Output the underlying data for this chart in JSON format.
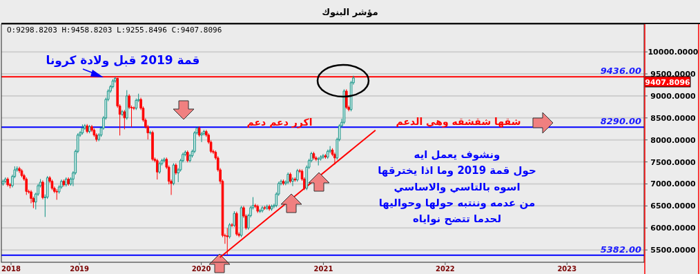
{
  "chart_data": {
    "type": "candlestick",
    "title": "مؤشر البنوك",
    "x": [
      "2018-05-17",
      "2018-05-24",
      "2018-05-31",
      "2018-06-07",
      "2018-06-14",
      "2018-06-21",
      "2018-06-28",
      "2018-07-05",
      "2018-07-12",
      "2018-07-19",
      "2018-07-26",
      "2018-08-02",
      "2018-08-09",
      "2018-08-16",
      "2018-08-23",
      "2018-08-30",
      "2018-09-06",
      "2018-09-13",
      "2018-09-20",
      "2018-09-27",
      "2018-10-04",
      "2018-10-11",
      "2018-10-18",
      "2018-10-25",
      "2018-11-01",
      "2018-11-08",
      "2018-11-15",
      "2018-11-22",
      "2018-11-29",
      "2018-12-06",
      "2018-12-13",
      "2018-12-20",
      "2018-12-27",
      "2019-01-03",
      "2019-01-10",
      "2019-01-17",
      "2019-01-24",
      "2019-01-31",
      "2019-02-07",
      "2019-02-14",
      "2019-02-21",
      "2019-02-28",
      "2019-03-07",
      "2019-03-14",
      "2019-03-21",
      "2019-03-28",
      "2019-04-04",
      "2019-04-11",
      "2019-04-18",
      "2019-04-25",
      "2019-05-02",
      "2019-05-09",
      "2019-05-16",
      "2019-05-23",
      "2019-05-30",
      "2019-06-06",
      "2019-06-13",
      "2019-06-20",
      "2019-06-27",
      "2019-07-04",
      "2019-07-11",
      "2019-07-18",
      "2019-07-25",
      "2019-08-01",
      "2019-08-08",
      "2019-08-15",
      "2019-08-22",
      "2019-08-29",
      "2019-09-05",
      "2019-09-12",
      "2019-09-19",
      "2019-09-26",
      "2019-10-03",
      "2019-10-10",
      "2019-10-17",
      "2019-10-24",
      "2019-10-31",
      "2019-11-07",
      "2019-11-14",
      "2019-11-21",
      "2019-11-28",
      "2019-12-05",
      "2019-12-12",
      "2019-12-19",
      "2019-12-26",
      "2020-01-02",
      "2020-01-09",
      "2020-01-16",
      "2020-01-23",
      "2020-01-30",
      "2020-02-06",
      "2020-02-13",
      "2020-02-20",
      "2020-02-27",
      "2020-03-05",
      "2020-03-12",
      "2020-03-19",
      "2020-03-26",
      "2020-04-02",
      "2020-04-09",
      "2020-04-16",
      "2020-04-23",
      "2020-04-30",
      "2020-05-07",
      "2020-05-14",
      "2020-05-21",
      "2020-05-28",
      "2020-06-04",
      "2020-06-11",
      "2020-06-18",
      "2020-06-25",
      "2020-07-02",
      "2020-07-09",
      "2020-07-16",
      "2020-07-23",
      "2020-07-30",
      "2020-08-06",
      "2020-08-13",
      "2020-08-20",
      "2020-08-27",
      "2020-09-03",
      "2020-09-10",
      "2020-09-17",
      "2020-09-24",
      "2020-10-01",
      "2020-10-08",
      "2020-10-15",
      "2020-10-22",
      "2020-10-29",
      "2020-11-05",
      "2020-11-12",
      "2020-11-19",
      "2020-11-26",
      "2020-12-03",
      "2020-12-10",
      "2020-12-17",
      "2020-12-24",
      "2020-12-31",
      "2021-01-07",
      "2021-01-14",
      "2021-01-21",
      "2021-01-28",
      "2021-02-04",
      "2021-02-11",
      "2021-02-18",
      "2021-02-25",
      "2021-03-04",
      "2021-03-11",
      "2021-03-18",
      "2021-03-25",
      "2021-04-01"
    ],
    "ohlc": [
      [
        7000,
        7100,
        6960,
        7060
      ],
      [
        7060,
        7150,
        7020,
        7110
      ],
      [
        7110,
        7150,
        6940,
        6980
      ],
      [
        6980,
        7020,
        6900,
        6960
      ],
      [
        6960,
        7210,
        6920,
        7170
      ],
      [
        7170,
        7400,
        7130,
        7320
      ],
      [
        7320,
        7400,
        7280,
        7350
      ],
      [
        7350,
        7390,
        7250,
        7300
      ],
      [
        7300,
        7340,
        7150,
        7190
      ],
      [
        7190,
        7230,
        7070,
        7110
      ],
      [
        7110,
        7150,
        6750,
        6830
      ],
      [
        6830,
        6870,
        6780,
        6820
      ],
      [
        6820,
        6860,
        6560,
        6670
      ],
      [
        6670,
        6710,
        6450,
        6590
      ],
      [
        6590,
        6800,
        6420,
        6770
      ],
      [
        6770,
        7000,
        6730,
        6960
      ],
      [
        6960,
        7110,
        6920,
        7040
      ],
      [
        7040,
        7080,
        6650,
        6690
      ],
      [
        6690,
        6760,
        6250,
        6700
      ],
      [
        6700,
        7180,
        6660,
        7140
      ],
      [
        7140,
        7180,
        7020,
        7060
      ],
      [
        7060,
        7100,
        6860,
        6900
      ],
      [
        6900,
        6940,
        6790,
        6830
      ],
      [
        6830,
        6880,
        6640,
        6820
      ],
      [
        6820,
        6970,
        6780,
        6930
      ],
      [
        6930,
        7100,
        6890,
        7060
      ],
      [
        7060,
        7100,
        6940,
        6980
      ],
      [
        6980,
        7150,
        6940,
        7110
      ],
      [
        7110,
        7150,
        6960,
        7000
      ],
      [
        7000,
        7150,
        6960,
        7110
      ],
      [
        7110,
        7290,
        6950,
        7250
      ],
      [
        7250,
        7780,
        7210,
        7740
      ],
      [
        7740,
        8150,
        7700,
        8110
      ],
      [
        8110,
        8200,
        8070,
        8160
      ],
      [
        8160,
        8350,
        8120,
        8270
      ],
      [
        8270,
        8360,
        8230,
        8320
      ],
      [
        8320,
        8360,
        8150,
        8190
      ],
      [
        8190,
        8340,
        8150,
        8300
      ],
      [
        8300,
        8340,
        8180,
        8220
      ],
      [
        8220,
        8260,
        8070,
        8110
      ],
      [
        8110,
        8150,
        7960,
        8010
      ],
      [
        8010,
        8150,
        7970,
        8110
      ],
      [
        8110,
        8310,
        8070,
        8270
      ],
      [
        8270,
        8540,
        8230,
        8500
      ],
      [
        8500,
        8960,
        8460,
        8920
      ],
      [
        8920,
        9150,
        8880,
        9110
      ],
      [
        9110,
        9250,
        9070,
        9210
      ],
      [
        9210,
        9380,
        9170,
        9340
      ],
      [
        9340,
        9430,
        9300,
        9400
      ],
      [
        9400,
        9410,
        8730,
        8770
      ],
      [
        8770,
        8810,
        8100,
        8580
      ],
      [
        8580,
        8680,
        8540,
        8640
      ],
      [
        8640,
        8680,
        8240,
        8500
      ],
      [
        8500,
        9130,
        8460,
        9000
      ],
      [
        9000,
        9040,
        8700,
        8740
      ],
      [
        8740,
        8780,
        8290,
        8730
      ],
      [
        8730,
        8760,
        8680,
        8720
      ],
      [
        8720,
        8940,
        8680,
        8900
      ],
      [
        8900,
        9050,
        8860,
        8920
      ],
      [
        8920,
        8960,
        8680,
        8720
      ],
      [
        8720,
        8760,
        8410,
        8450
      ],
      [
        8450,
        8490,
        8260,
        8300
      ],
      [
        8300,
        8340,
        8010,
        8160
      ],
      [
        8160,
        8210,
        8120,
        8170
      ],
      [
        8170,
        8210,
        7520,
        7560
      ],
      [
        7560,
        7600,
        7490,
        7530
      ],
      [
        7530,
        7570,
        7100,
        7270
      ],
      [
        7270,
        7500,
        7230,
        7460
      ],
      [
        7460,
        7570,
        7420,
        7530
      ],
      [
        7530,
        7600,
        7490,
        7560
      ],
      [
        7560,
        7600,
        7340,
        7380
      ],
      [
        7380,
        7420,
        6990,
        7060
      ],
      [
        7060,
        7100,
        6750,
        7010
      ],
      [
        7010,
        7470,
        6970,
        7430
      ],
      [
        7430,
        7470,
        7210,
        7250
      ],
      [
        7250,
        7360,
        7040,
        7320
      ],
      [
        7320,
        7570,
        7280,
        7530
      ],
      [
        7530,
        7710,
        7490,
        7670
      ],
      [
        7670,
        7760,
        7630,
        7720
      ],
      [
        7720,
        7760,
        7490,
        7530
      ],
      [
        7530,
        7680,
        7490,
        7640
      ],
      [
        7640,
        7780,
        7600,
        7740
      ],
      [
        7740,
        8200,
        7700,
        8160
      ],
      [
        8160,
        8300,
        8120,
        8270
      ],
      [
        8270,
        8310,
        8070,
        8110
      ],
      [
        8110,
        8180,
        7950,
        8140
      ],
      [
        8140,
        8230,
        8100,
        8190
      ],
      [
        8190,
        8230,
        8070,
        8110
      ],
      [
        8110,
        8150,
        7910,
        7950
      ],
      [
        7950,
        7990,
        7700,
        7740
      ],
      [
        7740,
        7780,
        7680,
        7720
      ],
      [
        7720,
        7760,
        7550,
        7590
      ],
      [
        7590,
        7630,
        7280,
        7320
      ],
      [
        7320,
        7360,
        7000,
        7060
      ],
      [
        7060,
        7100,
        5790,
        5830
      ],
      [
        5830,
        5870,
        5640,
        5820
      ],
      [
        5820,
        6000,
        5390,
        5800
      ],
      [
        5800,
        6110,
        5760,
        6070
      ],
      [
        6070,
        6110,
        6020,
        6060
      ],
      [
        6060,
        6380,
        6020,
        6330
      ],
      [
        6330,
        6370,
        5820,
        5860
      ],
      [
        5860,
        5900,
        5790,
        5830
      ],
      [
        5830,
        6500,
        5790,
        6460
      ],
      [
        6460,
        6500,
        6230,
        6270
      ],
      [
        6270,
        6310,
        5960,
        6000
      ],
      [
        6000,
        6320,
        5960,
        6280
      ],
      [
        6280,
        6500,
        6240,
        6460
      ],
      [
        6460,
        6700,
        6420,
        6510
      ],
      [
        6510,
        6550,
        6450,
        6490
      ],
      [
        6490,
        6530,
        6340,
        6380
      ],
      [
        6380,
        6430,
        6340,
        6390
      ],
      [
        6390,
        6500,
        6350,
        6460
      ],
      [
        6460,
        6500,
        6410,
        6450
      ],
      [
        6450,
        6530,
        6410,
        6490
      ],
      [
        6490,
        6530,
        6390,
        6430
      ],
      [
        6430,
        6530,
        6390,
        6490
      ],
      [
        6490,
        6550,
        6450,
        6510
      ],
      [
        6510,
        6810,
        6470,
        6770
      ],
      [
        6770,
        7050,
        6730,
        7010
      ],
      [
        7010,
        7100,
        6970,
        7060
      ],
      [
        7060,
        7100,
        6970,
        7010
      ],
      [
        7010,
        7080,
        6970,
        7040
      ],
      [
        7040,
        7260,
        7000,
        7220
      ],
      [
        7220,
        7260,
        7020,
        7060
      ],
      [
        7060,
        7150,
        6950,
        7110
      ],
      [
        7110,
        7150,
        7050,
        7090
      ],
      [
        7090,
        7340,
        7050,
        7300
      ],
      [
        7300,
        7340,
        7250,
        7290
      ],
      [
        7290,
        7330,
        7070,
        7110
      ],
      [
        7110,
        7150,
        6860,
        6900
      ],
      [
        6900,
        7420,
        6860,
        7380
      ],
      [
        7380,
        7570,
        7340,
        7530
      ],
      [
        7530,
        7730,
        7490,
        7690
      ],
      [
        7690,
        7730,
        7550,
        7590
      ],
      [
        7590,
        7630,
        7520,
        7560
      ],
      [
        7560,
        7610,
        7420,
        7570
      ],
      [
        7570,
        7650,
        7530,
        7610
      ],
      [
        7610,
        7680,
        7570,
        7640
      ],
      [
        7640,
        7680,
        7570,
        7610
      ],
      [
        7610,
        7780,
        7570,
        7740
      ],
      [
        7740,
        7860,
        7700,
        7770
      ],
      [
        7770,
        7810,
        7630,
        7670
      ],
      [
        7670,
        7710,
        7440,
        7590
      ],
      [
        7590,
        8050,
        7550,
        8010
      ],
      [
        8010,
        8360,
        7970,
        8320
      ],
      [
        8320,
        8480,
        8280,
        8400
      ],
      [
        8400,
        9150,
        8360,
        9110
      ],
      [
        9110,
        9150,
        8700,
        8740
      ],
      [
        8740,
        8780,
        8650,
        8690
      ],
      [
        8690,
        9340,
        8650,
        9300
      ],
      [
        9298.8203,
        9458.8203,
        9255.8496,
        9407.8096
      ]
    ],
    "series": [
      {
        "type": "line",
        "color": "#ff0000",
        "x": [
          "2020-02-26",
          "2021-06-06"
        ],
        "values": [
          5330,
          8220
        ]
      }
    ],
    "xlim": [
      "2018-05-12",
      "2023-08-20"
    ],
    "xticks": [
      {
        "value": "2018-06-10",
        "label": "2018"
      },
      {
        "value": "2019-01-01",
        "label": "2019"
      },
      {
        "value": "2020-01-01",
        "label": "2020"
      },
      {
        "value": "2021-01-01",
        "label": "2021"
      },
      {
        "value": "2022-01-01",
        "label": "2022"
      },
      {
        "value": "2023-01-01",
        "label": "2023"
      }
    ],
    "ylim": [
      5220,
      10630
    ],
    "yticks": [
      {
        "value": 5500,
        "label": "5500.0000"
      },
      {
        "value": 6000,
        "label": "6000.0000"
      },
      {
        "value": 6500,
        "label": "6500.0000"
      },
      {
        "value": 7000,
        "label": "7000.0000"
      },
      {
        "value": 7500,
        "label": "7500.0000"
      },
      {
        "value": 8000,
        "label": "8000.0000"
      },
      {
        "value": 8500,
        "label": "8500.0000"
      },
      {
        "value": 9000,
        "label": "9000.0000"
      },
      {
        "value": 9500,
        "label": "9500.0000"
      },
      {
        "value": 10000,
        "label": "10000.0000"
      }
    ],
    "grid": "y",
    "ref_lines": [
      {
        "axis": "y",
        "value": 9436,
        "label": "9436.00",
        "color": "#ff0000"
      },
      {
        "axis": "y",
        "value": 8290,
        "label": "8290.00",
        "color": "#0000ff"
      },
      {
        "axis": "y",
        "value": 5382,
        "label": "5382.00",
        "color": "#0000ff"
      }
    ],
    "annotations": [
      "O:9298.8203  H:9458.8203  L:9255.8496  C:9407.8096",
      "قمة 2019 قبل ولادة كرونا",
      "اكرر دعم دعم",
      "شقها شقشقه وهي الدعم",
      "ونشوف يعمل ايه\nحول قمة 2019 وما اذا يخترقها\nاسوه بالتاسي والاساسي\nمن عدمه وننتبه  حولها وحواليها\nلحدما تتضح نواياه",
      "9407.8096"
    ]
  }
}
